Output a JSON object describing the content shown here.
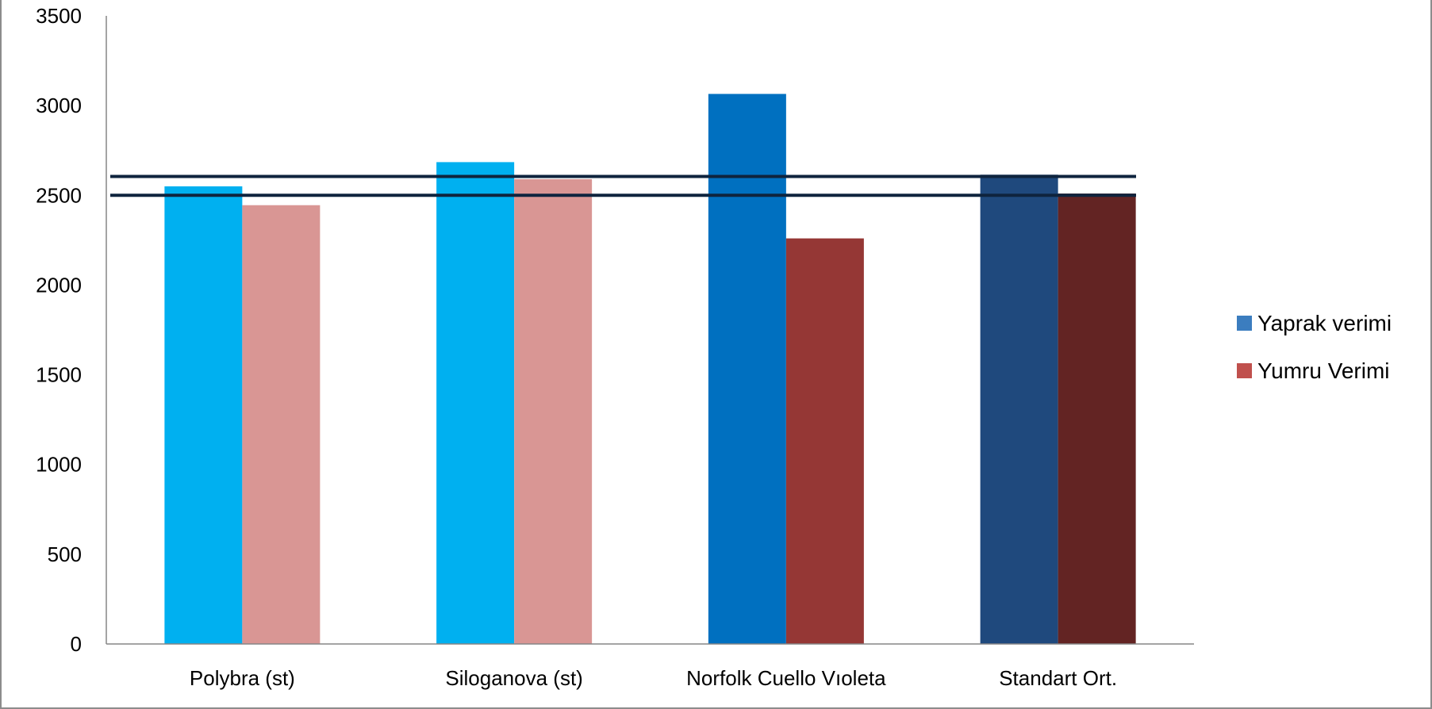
{
  "chart_data": {
    "type": "bar",
    "title": "",
    "xlabel": "",
    "ylabel": "",
    "ylim": [
      0,
      3500
    ],
    "yticks": [
      0,
      500,
      1000,
      1500,
      2000,
      2500,
      3000,
      3500
    ],
    "categories": [
      "Polybra (st)",
      "Siloganova (st)",
      "Norfolk Cuello Vıoleta",
      "Standart Ort."
    ],
    "series": [
      {
        "name": "Yaprak verimi",
        "legend_color": "#3b7dbf",
        "values": [
          2550,
          2685,
          3065,
          2615
        ],
        "bar_colors": [
          "#00b0f0",
          "#00b0f0",
          "#0070c0",
          "#1f497d"
        ]
      },
      {
        "name": "Yumru Verimi",
        "legend_color": "#c0504d",
        "values": [
          2445,
          2590,
          2260,
          2510
        ],
        "bar_colors": [
          "#d99694",
          "#d99694",
          "#953735",
          "#632423"
        ]
      }
    ],
    "reference_lines": [
      2605,
      2500
    ],
    "reference_line_color": "#0f243e",
    "grid": false,
    "legend_position": "right"
  }
}
